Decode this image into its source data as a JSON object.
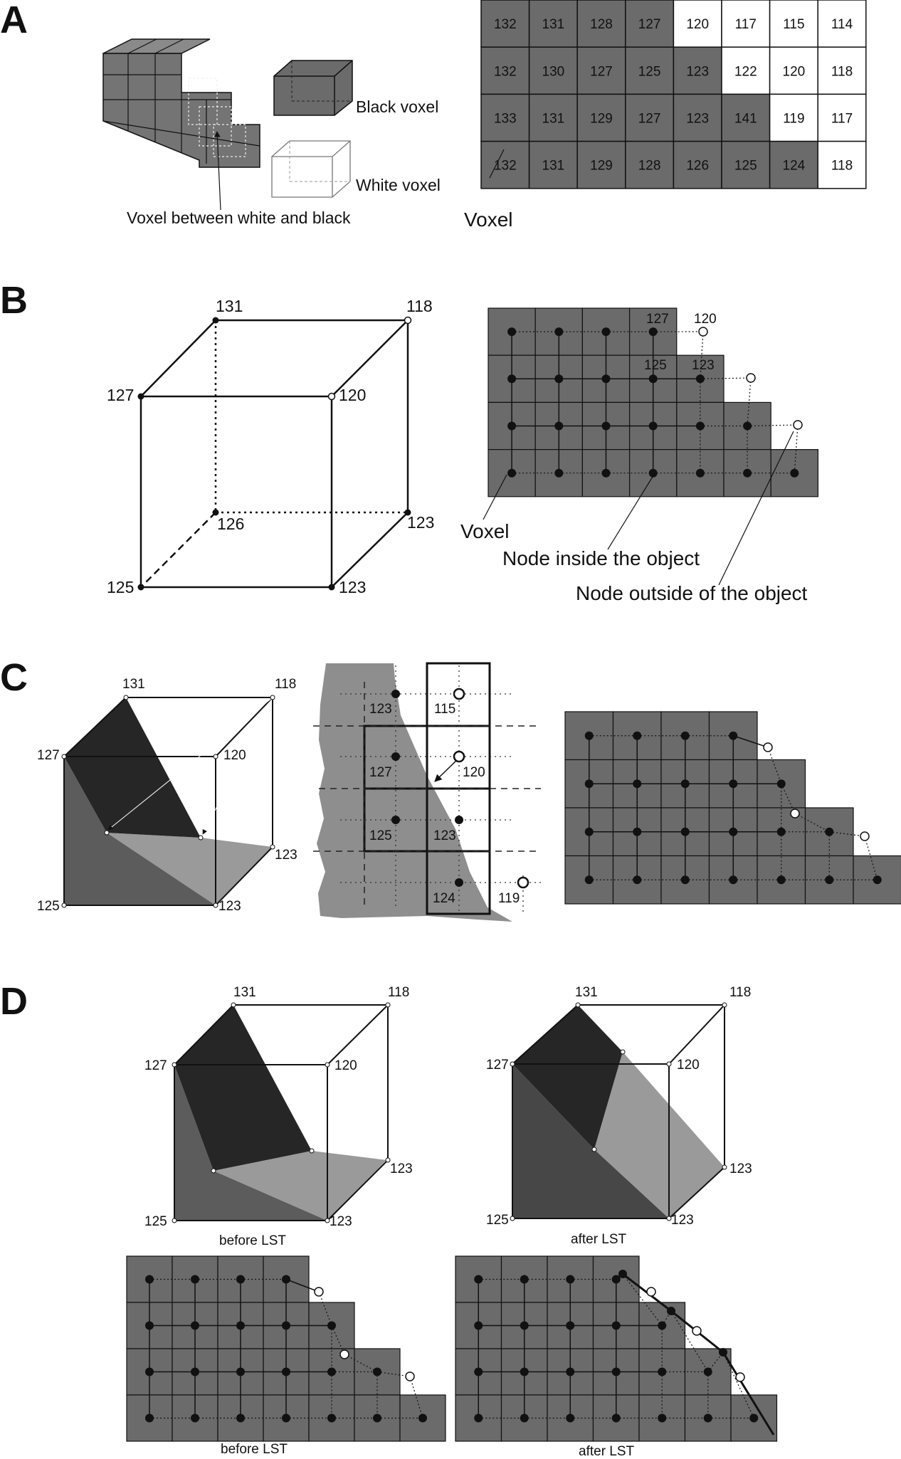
{
  "panels": {
    "a": "A",
    "b": "B",
    "c": "C",
    "d": "D"
  },
  "panel_a": {
    "black_voxel_label": "Black voxel",
    "white_voxel_label": "White voxel",
    "between_label": "Voxel between white and black",
    "voxel_label": "Voxel",
    "grid_values": [
      [
        132,
        131,
        128,
        127,
        120,
        117,
        115,
        114
      ],
      [
        132,
        130,
        127,
        125,
        123,
        122,
        120,
        118
      ],
      [
        133,
        131,
        129,
        127,
        123,
        141,
        119,
        117
      ],
      [
        132,
        131,
        129,
        128,
        126,
        125,
        124,
        118
      ]
    ],
    "grid_white": [
      [
        0,
        0,
        0,
        0,
        1,
        1,
        1,
        1
      ],
      [
        0,
        0,
        0,
        0,
        0,
        1,
        1,
        1
      ],
      [
        0,
        0,
        0,
        0,
        0,
        0,
        1,
        1
      ],
      [
        0,
        0,
        0,
        0,
        0,
        0,
        0,
        1
      ]
    ]
  },
  "panel_b": {
    "cube": {
      "tbl": "131",
      "tbr": "118",
      "tfl": "127",
      "tfr": "120",
      "bbl": "126",
      "bbr": "123",
      "bfl": "125",
      "bfr": "123"
    },
    "grid_labels": {
      "a": "127",
      "b": "120",
      "c": "125",
      "d": "123"
    },
    "voxel_label": "Voxel",
    "inside_label": "Node inside the object",
    "outside_label": "Node outside of the object"
  },
  "panel_c": {
    "cube": {
      "tbl": "131",
      "tbr": "118",
      "tfl": "127",
      "tfr": "120",
      "bbr": "123",
      "bfl": "125",
      "bfr": "123"
    },
    "boundary_labels": {
      "n1": "123",
      "n2": "115",
      "n3": "127",
      "n4": "120",
      "n5": "125",
      "n6": "123",
      "n7": "124",
      "n8": "119"
    }
  },
  "panel_d": {
    "cube": {
      "tbl": "131",
      "tbr": "118",
      "tfl": "127",
      "tfr": "120",
      "bbr": "123",
      "bfl": "125",
      "bfr": "123"
    },
    "before_label": "before LST",
    "after_label": "after LST"
  },
  "colors": {
    "voxel_gray": "#6b6b6b",
    "dark_plane": "#262626",
    "mid_plane": "#5c5c5c",
    "light_plane": "#9a9a9a",
    "line": "#111111"
  }
}
